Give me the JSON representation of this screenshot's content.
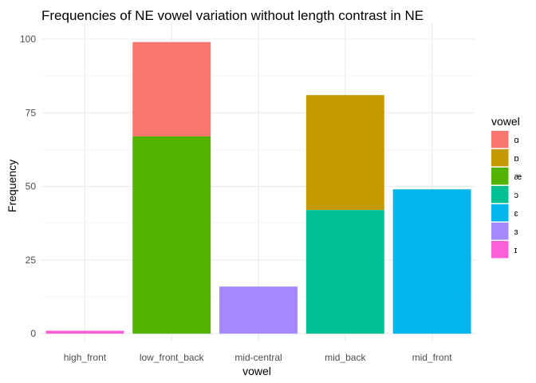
{
  "chart_data": {
    "type": "bar",
    "stacked": true,
    "title": "Frequencies of NE vowel variation without length contrast in NE",
    "xlabel": "vowel",
    "ylabel": "Frequency",
    "ylim": [
      0,
      104
    ],
    "yticks": [
      0,
      25,
      50,
      75,
      100
    ],
    "grid": true,
    "legend_position": "right",
    "legend_title": "vowel",
    "categories": [
      "high_front",
      "low_front_back",
      "mid-central",
      "mid_back",
      "mid_front"
    ],
    "series": [
      {
        "name": "ɑ",
        "color": "#F8766D",
        "values": [
          0,
          32,
          0,
          0,
          0
        ]
      },
      {
        "name": "ɒ",
        "color": "#C49A00",
        "values": [
          0,
          0,
          0,
          39,
          0
        ]
      },
      {
        "name": "æ",
        "color": "#53B400",
        "values": [
          0,
          67,
          0,
          0,
          0
        ]
      },
      {
        "name": "ɔ",
        "color": "#00C094",
        "values": [
          0,
          0,
          0,
          42,
          0
        ]
      },
      {
        "name": "ɛ",
        "color": "#00B6EB",
        "values": [
          0,
          0,
          0,
          0,
          49
        ]
      },
      {
        "name": "ɜ",
        "color": "#A58AFF",
        "values": [
          0,
          0,
          16,
          0,
          0
        ]
      },
      {
        "name": "ɪ",
        "color": "#FB61D7",
        "values": [
          1,
          0,
          0,
          0,
          0
        ]
      }
    ]
  }
}
